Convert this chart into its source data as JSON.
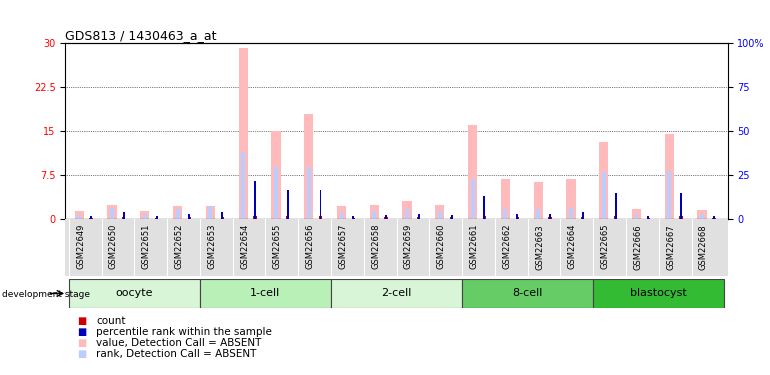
{
  "title": "GDS813 / 1430463_a_at",
  "samples": [
    "GSM22649",
    "GSM22650",
    "GSM22651",
    "GSM22652",
    "GSM22653",
    "GSM22654",
    "GSM22655",
    "GSM22656",
    "GSM22657",
    "GSM22658",
    "GSM22659",
    "GSM22660",
    "GSM22661",
    "GSM22662",
    "GSM22663",
    "GSM22664",
    "GSM22665",
    "GSM22666",
    "GSM22667",
    "GSM22668"
  ],
  "value_absent": [
    1.4,
    2.5,
    1.5,
    2.2,
    2.3,
    29.2,
    15.0,
    18.0,
    2.3,
    2.5,
    3.1,
    2.5,
    16.0,
    6.8,
    6.3,
    6.8,
    13.2,
    1.7,
    14.5,
    1.6
  ],
  "rank_absent": [
    0.8,
    2.0,
    0.9,
    1.8,
    2.2,
    11.5,
    9.0,
    9.0,
    1.2,
    1.5,
    1.8,
    1.5,
    6.8,
    1.8,
    1.8,
    2.0,
    8.0,
    1.0,
    8.2,
    0.9
  ],
  "count": [
    0.3,
    0.4,
    0.3,
    0.4,
    0.4,
    0.5,
    0.5,
    0.5,
    0.3,
    0.4,
    0.4,
    0.4,
    0.5,
    0.4,
    0.4,
    0.4,
    0.5,
    0.3,
    0.5,
    0.3
  ],
  "percentile": [
    0.5,
    1.2,
    0.5,
    1.0,
    1.2,
    6.5,
    5.0,
    5.0,
    0.6,
    0.8,
    1.0,
    0.8,
    4.0,
    1.0,
    1.0,
    1.2,
    4.5,
    0.6,
    4.5,
    0.5
  ],
  "stages": [
    {
      "label": "oocyte",
      "start": 0,
      "end": 4,
      "color": "#d8f5d8"
    },
    {
      "label": "1-cell",
      "start": 4,
      "end": 8,
      "color": "#b8f0b8"
    },
    {
      "label": "2-cell",
      "start": 8,
      "end": 12,
      "color": "#d8f5d8"
    },
    {
      "label": "8-cell",
      "start": 12,
      "end": 16,
      "color": "#66cc66"
    },
    {
      "label": "blastocyst",
      "start": 16,
      "end": 20,
      "color": "#33bb33"
    }
  ],
  "ylim_left": [
    0,
    30
  ],
  "ylim_right": [
    0,
    100
  ],
  "yticks_left": [
    0,
    7.5,
    15,
    22.5,
    30
  ],
  "yticks_right": [
    0,
    25,
    50,
    75,
    100
  ],
  "color_value_absent": "#ffbbbb",
  "color_rank_absent": "#bbccff",
  "color_count": "#cc0000",
  "color_percentile": "#0000bb",
  "title_fontsize": 9,
  "tick_fontsize": 7,
  "sample_fontsize": 6,
  "stage_fontsize": 8,
  "legend_fontsize": 7.5
}
